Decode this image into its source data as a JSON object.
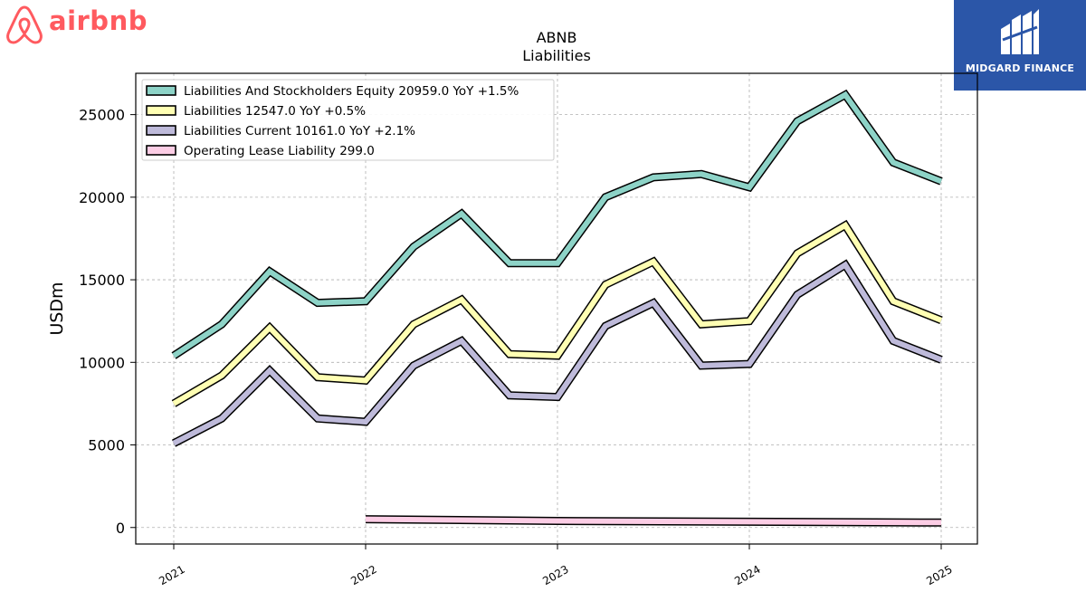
{
  "brand": {
    "name": "airbnb",
    "color": "#ff5a5f"
  },
  "sponsor": {
    "name": "MIDGARD FINANCE",
    "background": "#2b56a8"
  },
  "chart_data": {
    "type": "line",
    "title": "ABNB",
    "subtitle": "Liabilities",
    "ylabel": "USDm",
    "xlabel": "",
    "x_tick_labels": [
      "2021",
      "2022",
      "2023",
      "2024",
      "2025"
    ],
    "ylim": [
      -1000,
      27500
    ],
    "y_ticks": [
      0,
      5000,
      10000,
      15000,
      20000,
      25000
    ],
    "grid": true,
    "legend_position": "top-left",
    "x": [
      "2021-01",
      "2021-04",
      "2021-07",
      "2021-10",
      "2022-01",
      "2022-04",
      "2022-07",
      "2022-10",
      "2023-01",
      "2023-04",
      "2023-07",
      "2023-10",
      "2024-01",
      "2024-04",
      "2024-07",
      "2024-10",
      "2025-01"
    ],
    "series": [
      {
        "name": "Liabilities And Stockholders Equity",
        "legend": "Liabilities And Stockholders Equity  20959.0 YoY +1.5%",
        "color": "#8dd3c7",
        "values": [
          10400,
          12300,
          15500,
          13600,
          13700,
          17000,
          19000,
          16000,
          16000,
          20000,
          21200,
          21400,
          20600,
          24600,
          26200,
          22100,
          20959
        ]
      },
      {
        "name": "Liabilities",
        "legend": "Liabilities  12547.0 YoY +0.5%",
        "color": "#ffffb3",
        "values": [
          7500,
          9200,
          12100,
          9100,
          8900,
          12300,
          13800,
          10500,
          10400,
          14700,
          16100,
          12300,
          12500,
          16600,
          18300,
          13700,
          12547
        ]
      },
      {
        "name": "Liabilities Current",
        "legend": "Liabilities Current  10161.0 YoY +2.1%",
        "color": "#bebada",
        "values": [
          5100,
          6600,
          9500,
          6600,
          6400,
          9800,
          11300,
          8000,
          7900,
          12200,
          13600,
          9800,
          9900,
          14100,
          15900,
          11300,
          10161
        ]
      },
      {
        "name": "Operating Lease Liability",
        "legend": "Operating Lease Liability  299.0",
        "color": "#fccde5",
        "start_index": 4,
        "values": [
          null,
          null,
          null,
          null,
          500,
          null,
          null,
          null,
          400,
          null,
          null,
          null,
          350,
          null,
          null,
          null,
          299
        ]
      }
    ]
  }
}
